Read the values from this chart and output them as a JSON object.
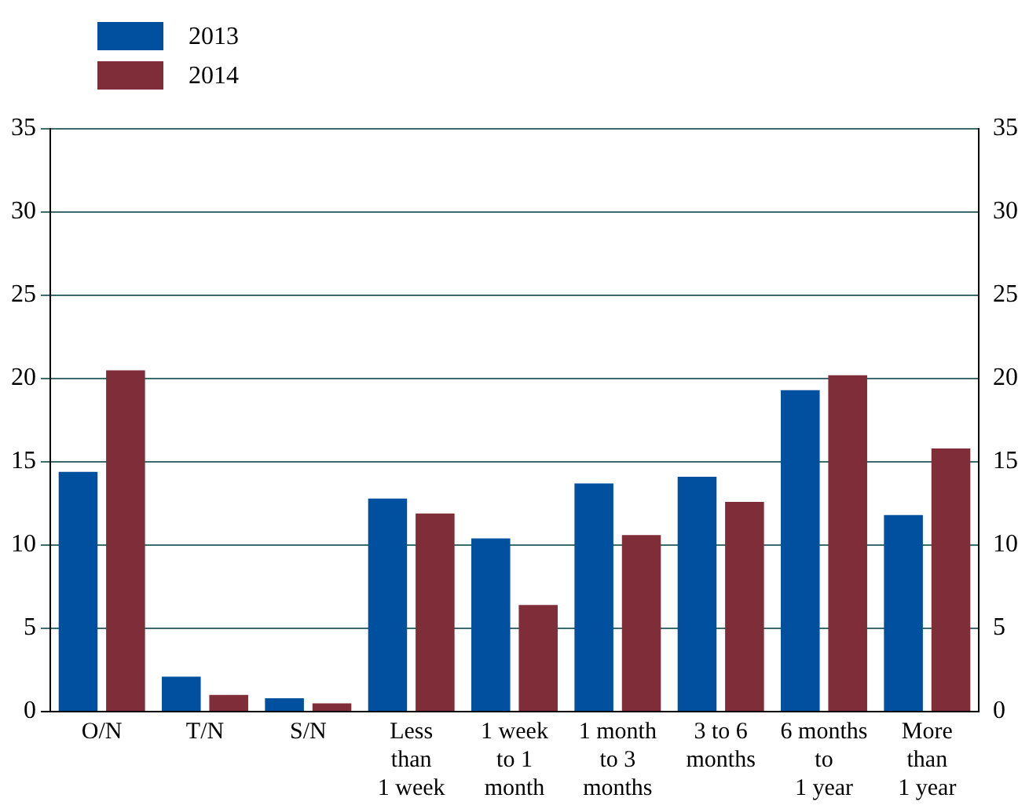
{
  "chart_data": {
    "type": "bar",
    "categories": [
      "O/N",
      "T/N",
      "S/N",
      "Less\nthan\n1 week",
      "1 week\nto 1\nmonth",
      "1 month\nto 3\nmonths",
      "3 to 6\nmonths",
      "6 months\nto\n1 year",
      "More\nthan\n1 year"
    ],
    "series": [
      {
        "name": "2013",
        "color": "#0050a0",
        "values": [
          14.4,
          2.1,
          0.8,
          12.8,
          10.4,
          13.7,
          14.1,
          19.3,
          11.8
        ]
      },
      {
        "name": "2014",
        "color": "#7f2d38",
        "values": [
          20.5,
          1.0,
          0.5,
          11.9,
          6.4,
          10.6,
          12.6,
          20.2,
          15.8
        ]
      }
    ],
    "ylim": [
      0,
      35
    ],
    "yticks": [
      0,
      5,
      10,
      15,
      20,
      25,
      30,
      35
    ],
    "y2lim": [
      0,
      35
    ],
    "y2ticks": [
      0,
      5,
      10,
      15,
      20,
      25,
      30,
      35
    ],
    "grid": "y",
    "legend": "top left"
  }
}
